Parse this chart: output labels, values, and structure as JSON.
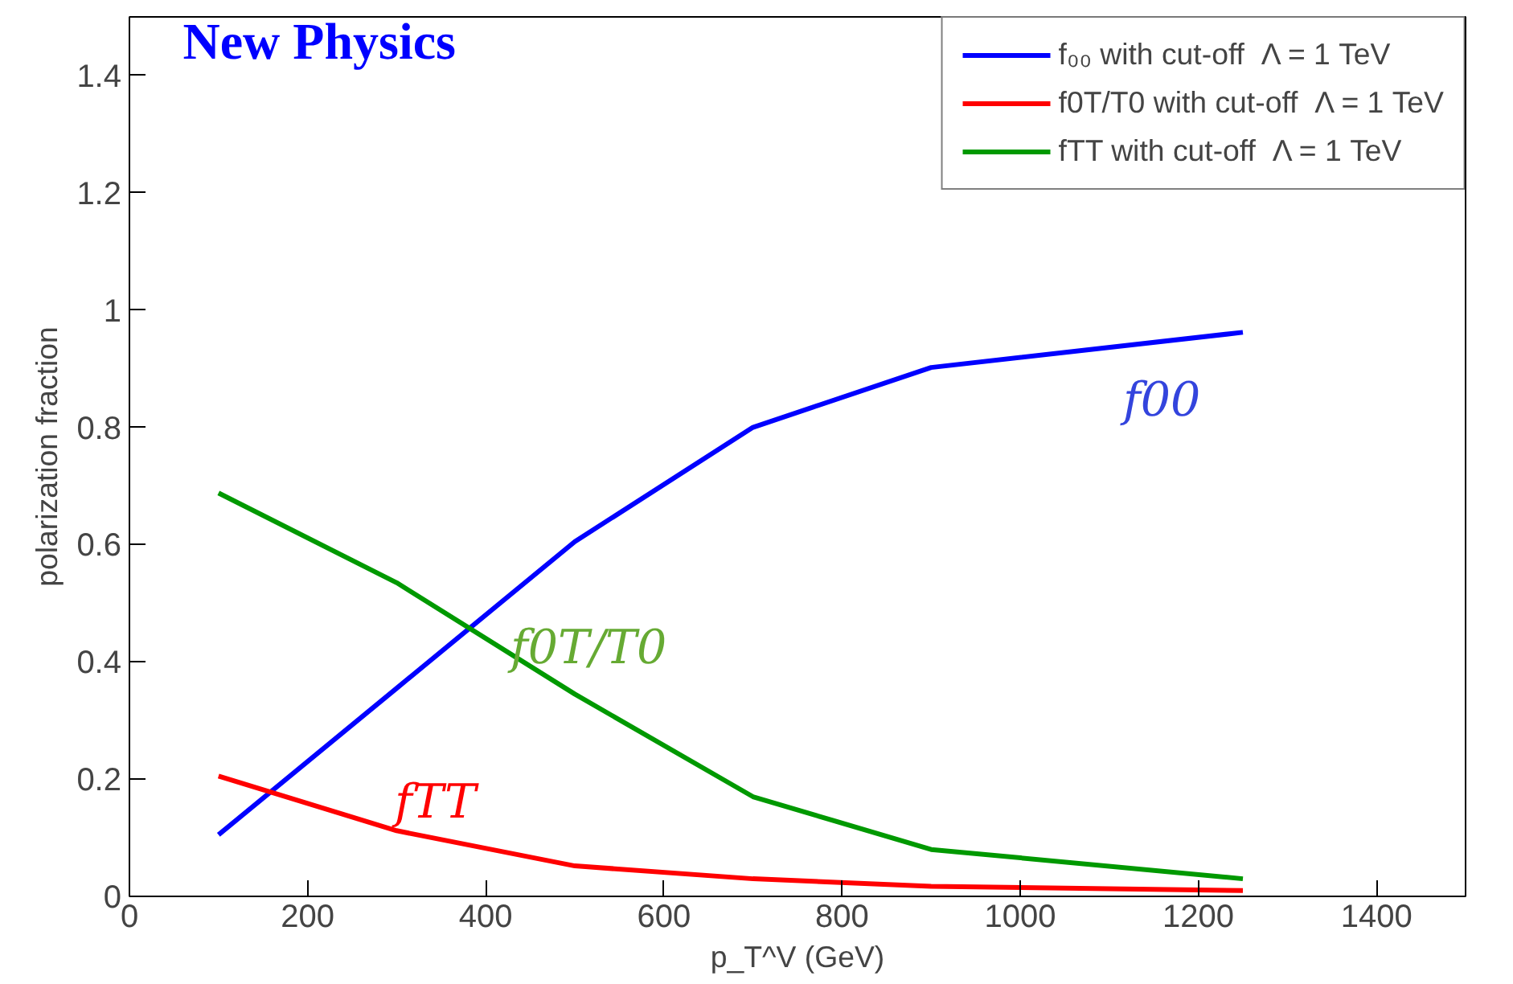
{
  "chart_data": {
    "type": "line",
    "title": "New Physics",
    "xlabel": "p_T^V (GeV)",
    "ylabel": "polarization fraction",
    "x": [
      100,
      300,
      500,
      700,
      900,
      1250
    ],
    "series": [
      {
        "name": "f₀₀ with cut-off  Λ = 1 TeV",
        "color": "#0000ff",
        "values": [
          0.105,
          0.355,
          0.605,
          0.8,
          0.902,
          0.962
        ]
      },
      {
        "name": "f0T/T0 with cut-off  Λ = 1 TeV",
        "color": "#ff0000",
        "values": [
          0.205,
          0.112,
          0.052,
          0.03,
          0.017,
          0.01
        ]
      },
      {
        "name": "fTT with cut-off  Λ = 1 TeV",
        "color": "#009900",
        "values": [
          0.688,
          0.535,
          0.345,
          0.17,
          0.08,
          0.03
        ]
      }
    ],
    "annotations": [
      "f00",
      "f0T/T0",
      "fTT"
    ],
    "xlim": [
      0,
      1500
    ],
    "ylim": [
      0,
      1.5
    ],
    "xticks": [
      0,
      200,
      400,
      600,
      800,
      1000,
      1200,
      1400
    ],
    "yticks": [
      0,
      0.2,
      0.4,
      0.6,
      0.8,
      1,
      1.2,
      1.4
    ],
    "grid": false,
    "legend": "top right",
    "marker": "none",
    "line_style": "solid"
  }
}
